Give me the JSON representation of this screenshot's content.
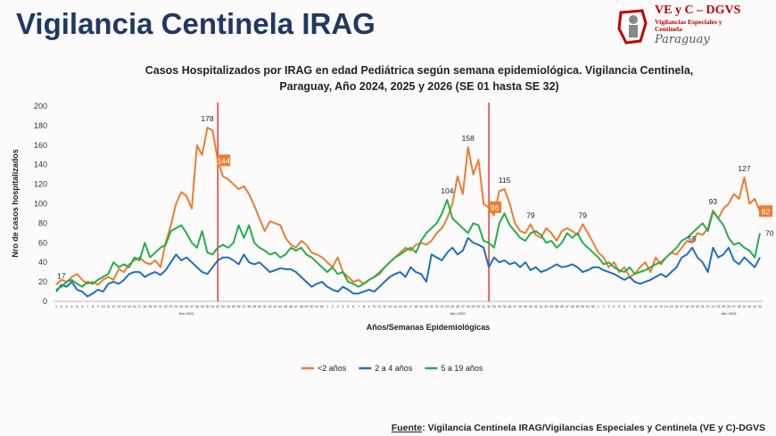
{
  "header": {
    "title": "Vigilancia Centinela IRAG",
    "logo": {
      "name": "VE y C – DGVS",
      "line1": "Vigilancias Especiales y",
      "line2": "Centinela",
      "country": "Paraguay"
    }
  },
  "chart_data": {
    "type": "line",
    "title": "Casos Hospitalizados por IRAG en edad Pediátrica según semana epidemiológica. Vigilancia Centinela, Paraguay, Año 2024, 2025 y 2026 (SE 01 hasta SE 32)",
    "y_label": "Nro de casos hospitalizados",
    "x_label": "Años/Semanas Epidemiológicas",
    "year_labels": [
      "Año 2024",
      "Año 2025",
      "Año 2026"
    ],
    "categories": [
      1,
      2,
      3,
      4,
      5,
      6,
      7,
      8,
      9,
      10,
      11,
      12,
      13,
      14,
      15,
      16,
      17,
      18,
      19,
      20,
      21,
      22,
      23,
      24,
      25,
      26,
      27,
      28,
      29,
      30,
      31,
      32,
      33,
      34,
      35,
      36,
      37,
      38,
      39,
      40,
      41,
      42,
      43,
      44,
      45,
      46,
      47,
      48,
      49,
      50,
      51,
      52,
      1,
      2,
      3,
      4,
      5,
      6,
      7,
      8,
      9,
      10,
      11,
      12,
      13,
      14,
      15,
      16,
      17,
      18,
      19,
      20,
      21,
      22,
      23,
      24,
      25,
      26,
      27,
      28,
      29,
      30,
      31,
      32,
      33,
      34,
      35,
      36,
      37,
      38,
      39,
      40,
      41,
      42,
      43,
      44,
      45,
      46,
      47,
      48,
      49,
      50,
      51,
      52,
      1,
      2,
      3,
      4,
      5,
      6,
      7,
      8,
      9,
      10,
      11,
      12,
      13,
      14,
      15,
      16,
      17,
      18,
      19,
      20,
      21,
      22,
      23,
      24,
      25,
      26,
      27,
      28,
      29,
      30,
      31,
      32
    ],
    "ylim": [
      0,
      200
    ],
    "yticks": [
      0,
      20,
      40,
      60,
      80,
      100,
      120,
      140,
      160,
      180,
      200
    ],
    "grid": false,
    "legend": "bottom",
    "series": [
      {
        "name": "<2 años",
        "color": "#ed7d31",
        "values": [
          17,
          22,
          20,
          25,
          28,
          22,
          18,
          20,
          17,
          22,
          25,
          22,
          33,
          30,
          38,
          42,
          45,
          40,
          38,
          42,
          35,
          60,
          78,
          100,
          112,
          108,
          95,
          160,
          150,
          178,
          175,
          144,
          128,
          125,
          120,
          115,
          118,
          110,
          98,
          85,
          72,
          82,
          80,
          78,
          65,
          58,
          55,
          62,
          58,
          50,
          48,
          45,
          40,
          35,
          45,
          30,
          25,
          20,
          22,
          18,
          22,
          25,
          30,
          35,
          40,
          45,
          50,
          55,
          52,
          58,
          60,
          58,
          62,
          70,
          75,
          85,
          100,
          128,
          110,
          158,
          130,
          145,
          100,
          96,
          88,
          113,
          115,
          100,
          80,
          72,
          70,
          79,
          68,
          65,
          75,
          70,
          62,
          72,
          75,
          72,
          68,
          79,
          70,
          60,
          50,
          45,
          35,
          40,
          30,
          35,
          25,
          28,
          35,
          40,
          30,
          45,
          38,
          45,
          50,
          48,
          55,
          62,
          60,
          70,
          68,
          75,
          93,
          85,
          95,
          100,
          110,
          105,
          127,
          100,
          105,
          92
        ],
        "value_labels": [
          null,
          null,
          null,
          null,
          null,
          null,
          null,
          null,
          null,
          null,
          null,
          null,
          null,
          null,
          null,
          null,
          null,
          null,
          null,
          null,
          null,
          null,
          null,
          null,
          null,
          null,
          null,
          null,
          null,
          "178",
          null,
          "144",
          null,
          null,
          null,
          null,
          null,
          null,
          null,
          null,
          null,
          null,
          null,
          null,
          null,
          null,
          null,
          null,
          null,
          null,
          null,
          null,
          null,
          null,
          null,
          null,
          null,
          null,
          null,
          null,
          null,
          null,
          null,
          null,
          null,
          null,
          null,
          null,
          null,
          null,
          null,
          null,
          null,
          null,
          null,
          null,
          null,
          null,
          null,
          "158",
          null,
          null,
          null,
          "96",
          null,
          null,
          "115",
          null,
          null,
          null,
          null,
          "79",
          null,
          null,
          null,
          null,
          null,
          null,
          null,
          null,
          null,
          "79",
          null,
          null,
          null,
          null,
          null,
          null,
          null,
          null,
          null,
          null,
          null,
          null,
          null,
          null,
          null,
          null,
          null,
          null,
          null,
          null,
          null,
          null,
          null,
          null,
          "93",
          null,
          null,
          null,
          null,
          null,
          "127",
          null,
          null,
          "92"
        ]
      },
      {
        "name": "2 a 4 años",
        "color": "#1f6fc0",
        "values": [
          10,
          17,
          15,
          20,
          12,
          10,
          5,
          8,
          12,
          10,
          18,
          20,
          18,
          22,
          28,
          30,
          30,
          25,
          28,
          30,
          27,
          32,
          40,
          48,
          42,
          45,
          40,
          35,
          30,
          28,
          35,
          42,
          45,
          45,
          42,
          38,
          48,
          40,
          38,
          40,
          35,
          30,
          32,
          34,
          33,
          33,
          30,
          25,
          20,
          15,
          18,
          20,
          15,
          12,
          10,
          15,
          12,
          8,
          8,
          10,
          12,
          10,
          15,
          20,
          25,
          28,
          30,
          25,
          35,
          30,
          28,
          20,
          48,
          45,
          42,
          50,
          55,
          48,
          52,
          65,
          60,
          58,
          55,
          35,
          45,
          40,
          42,
          38,
          40,
          35,
          40,
          32,
          35,
          30,
          32,
          35,
          38,
          35,
          36,
          38,
          35,
          30,
          32,
          35,
          35,
          32,
          30,
          28,
          25,
          22,
          25,
          20,
          18,
          20,
          22,
          25,
          28,
          25,
          30,
          35,
          45,
          48,
          55,
          45,
          40,
          30,
          55,
          45,
          48,
          55,
          42,
          38,
          45,
          40,
          35,
          45
        ],
        "value_labels": [
          null,
          "17",
          null,
          null,
          null,
          null,
          null,
          null,
          null,
          null,
          null,
          null,
          null,
          null,
          null,
          null,
          null,
          null,
          null,
          null,
          null,
          null,
          null,
          null,
          null,
          null,
          null,
          null,
          null,
          null,
          null,
          null,
          null,
          null,
          null,
          null,
          null,
          null,
          null,
          null,
          null,
          null,
          null,
          null,
          null,
          null,
          null,
          null,
          null,
          null,
          null,
          null,
          null,
          null,
          null,
          null,
          null,
          null,
          null,
          null,
          null,
          null,
          null,
          null,
          null,
          null,
          null,
          null,
          null,
          null,
          null,
          null,
          null,
          null,
          null,
          null,
          null,
          null,
          null,
          null,
          null,
          null,
          null,
          null,
          null,
          null,
          null,
          null,
          null,
          null,
          null,
          null,
          null,
          null,
          null,
          null,
          null,
          null,
          null,
          null,
          null,
          null,
          null,
          null,
          null,
          null,
          null,
          null,
          null,
          null,
          null,
          null,
          null,
          null,
          null,
          null,
          null,
          null,
          null,
          null,
          null,
          null,
          "55",
          null,
          null,
          null,
          null,
          null,
          null,
          null,
          null,
          null,
          null,
          null,
          null,
          null
        ]
      },
      {
        "name": "5 a 19 años",
        "color": "#22b04a",
        "values": [
          12,
          15,
          20,
          22,
          18,
          15,
          20,
          18,
          22,
          25,
          28,
          40,
          35,
          38,
          35,
          45,
          42,
          60,
          45,
          50,
          55,
          58,
          72,
          75,
          78,
          70,
          60,
          55,
          72,
          50,
          48,
          55,
          58,
          55,
          60,
          78,
          65,
          78,
          60,
          55,
          52,
          48,
          50,
          45,
          48,
          55,
          52,
          55,
          48,
          45,
          40,
          35,
          30,
          35,
          28,
          30,
          20,
          18,
          15,
          18,
          22,
          25,
          28,
          35,
          40,
          45,
          48,
          52,
          55,
          50,
          62,
          70,
          75,
          80,
          90,
          104,
          85,
          80,
          75,
          70,
          80,
          78,
          62,
          60,
          55,
          80,
          90,
          78,
          72,
          65,
          62,
          70,
          72,
          68,
          60,
          62,
          55,
          60,
          70,
          65,
          70,
          60,
          55,
          50,
          45,
          38,
          40,
          35,
          32,
          30,
          35,
          28,
          30,
          32,
          35,
          38,
          40,
          45,
          50,
          55,
          62,
          65,
          70,
          75,
          80,
          72,
          92,
          85,
          78,
          65,
          58,
          60,
          55,
          52,
          45,
          70
        ],
        "value_labels": [
          null,
          null,
          null,
          null,
          null,
          null,
          null,
          null,
          null,
          null,
          null,
          null,
          null,
          null,
          null,
          null,
          null,
          null,
          null,
          null,
          null,
          null,
          null,
          null,
          null,
          null,
          null,
          null,
          null,
          null,
          null,
          null,
          null,
          null,
          null,
          null,
          null,
          null,
          null,
          null,
          null,
          null,
          null,
          null,
          null,
          null,
          null,
          null,
          null,
          null,
          null,
          null,
          null,
          null,
          null,
          null,
          null,
          null,
          null,
          null,
          null,
          null,
          null,
          null,
          null,
          null,
          null,
          null,
          null,
          null,
          null,
          null,
          null,
          null,
          null,
          "104",
          null,
          null,
          null,
          null,
          null,
          null,
          null,
          null,
          null,
          null,
          null,
          null,
          null,
          null,
          null,
          null,
          null,
          null,
          null,
          null,
          null,
          null,
          null,
          null,
          null,
          null,
          null,
          null,
          null,
          null,
          null,
          null,
          null,
          null,
          null,
          null,
          null,
          null,
          null,
          null,
          null,
          null,
          null,
          null,
          null,
          null,
          null,
          null,
          null,
          null,
          null,
          null,
          null,
          null,
          null,
          null,
          null,
          null,
          null,
          "70"
        ]
      }
    ]
  },
  "footer": {
    "label": "Fuente",
    "text": ": Vigilancia  Centinela IRAG/Vigilancias Especiales y Centinela (VE y C)-DGVS"
  }
}
